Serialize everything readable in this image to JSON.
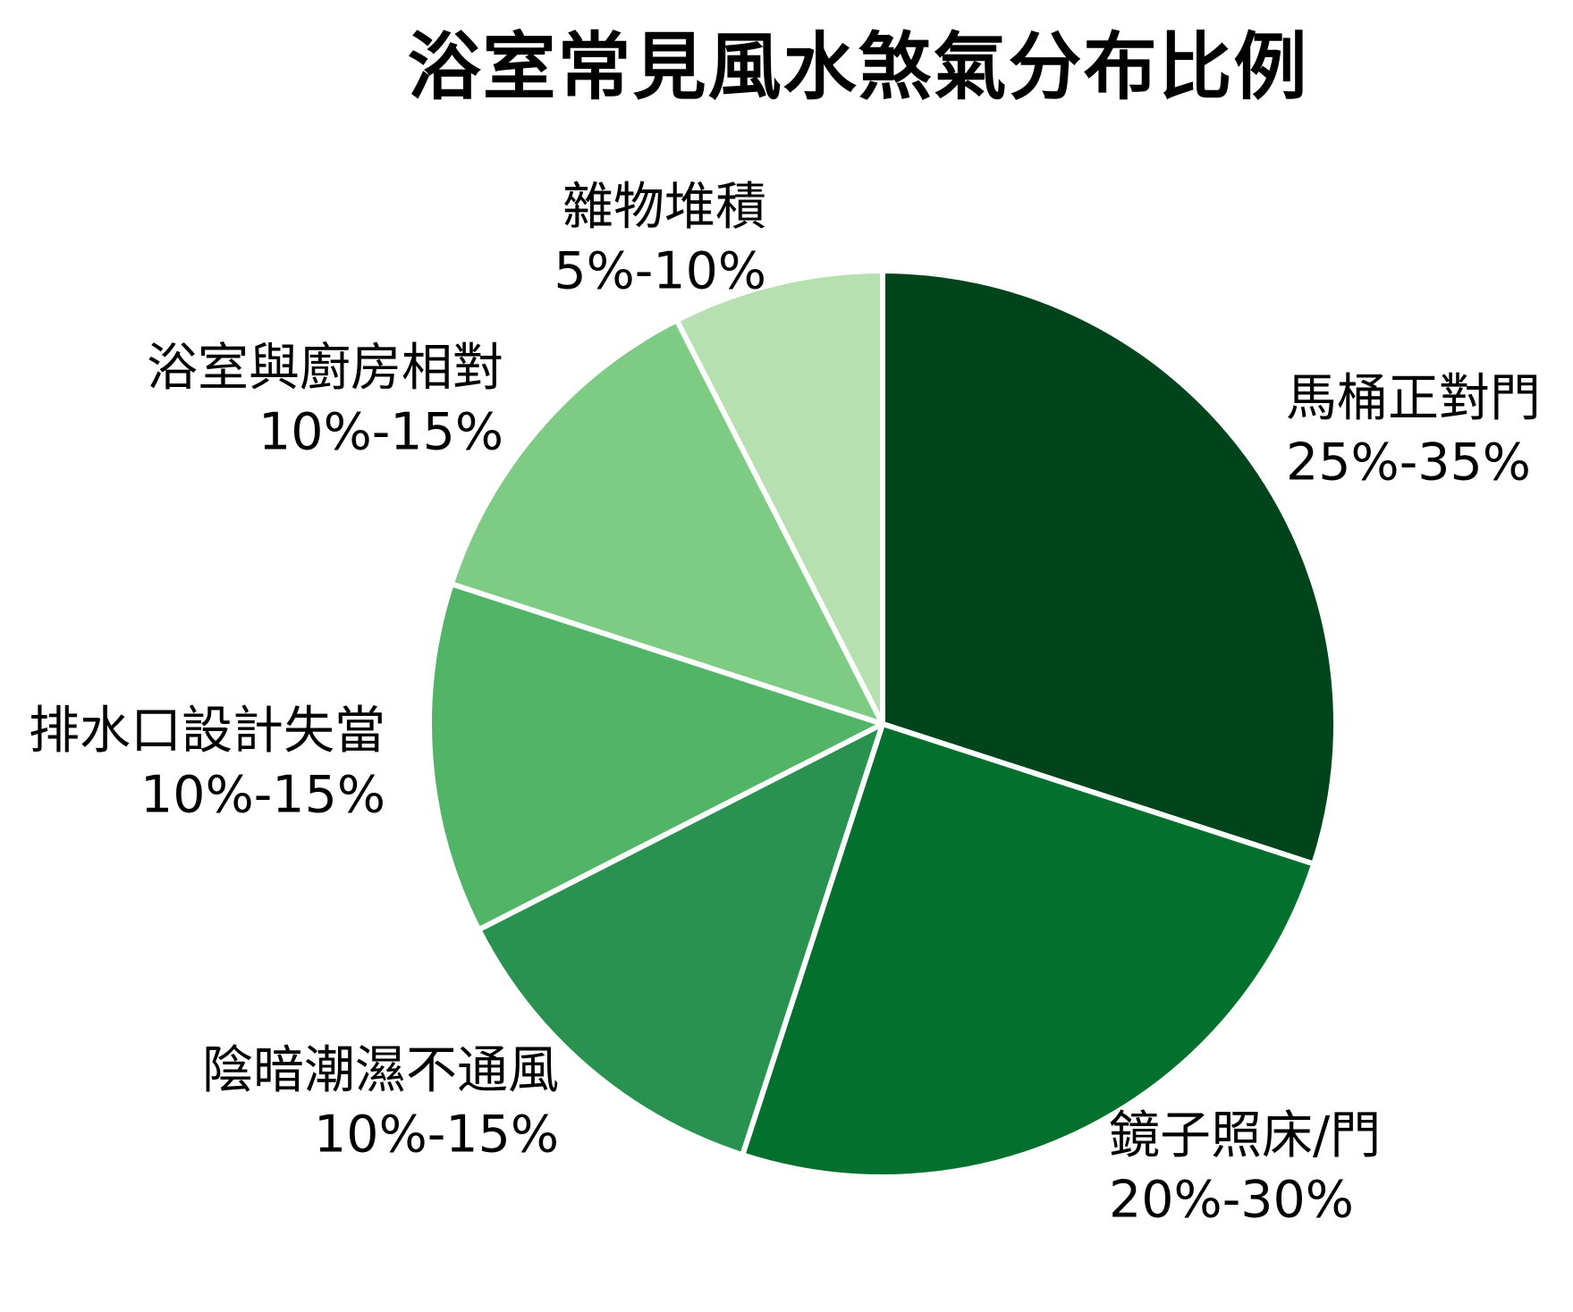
{
  "chart_data": {
    "type": "pie",
    "title": "浴室常見風水煞氣分布比例",
    "legend": "none",
    "label_position": "outside",
    "direction": "clockwise",
    "start_angle": "12-oclock",
    "slice_border_color": "#ffffff",
    "background_color": "#ffffff",
    "text_color": "#000000",
    "slices": [
      {
        "label": "馬桶正對門",
        "range": "25%-35%",
        "value": 30,
        "color": "#00441b"
      },
      {
        "label": "鏡子照床/門",
        "range": "20%-30%",
        "value": 25,
        "color": "#04702d"
      },
      {
        "label": "陰暗潮濕不通風",
        "range": "10%-15%",
        "value": 12.5,
        "color": "#2a9250"
      },
      {
        "label": "排水口設計失當",
        "range": "10%-15%",
        "value": 12.5,
        "color": "#52b466"
      },
      {
        "label": "浴室與廚房相對",
        "range": "10%-15%",
        "value": 12.5,
        "color": "#7ecb84"
      },
      {
        "label": "雜物堆積",
        "range": "5%-10%",
        "value": 7.5,
        "color": "#b6e0b0"
      }
    ]
  }
}
